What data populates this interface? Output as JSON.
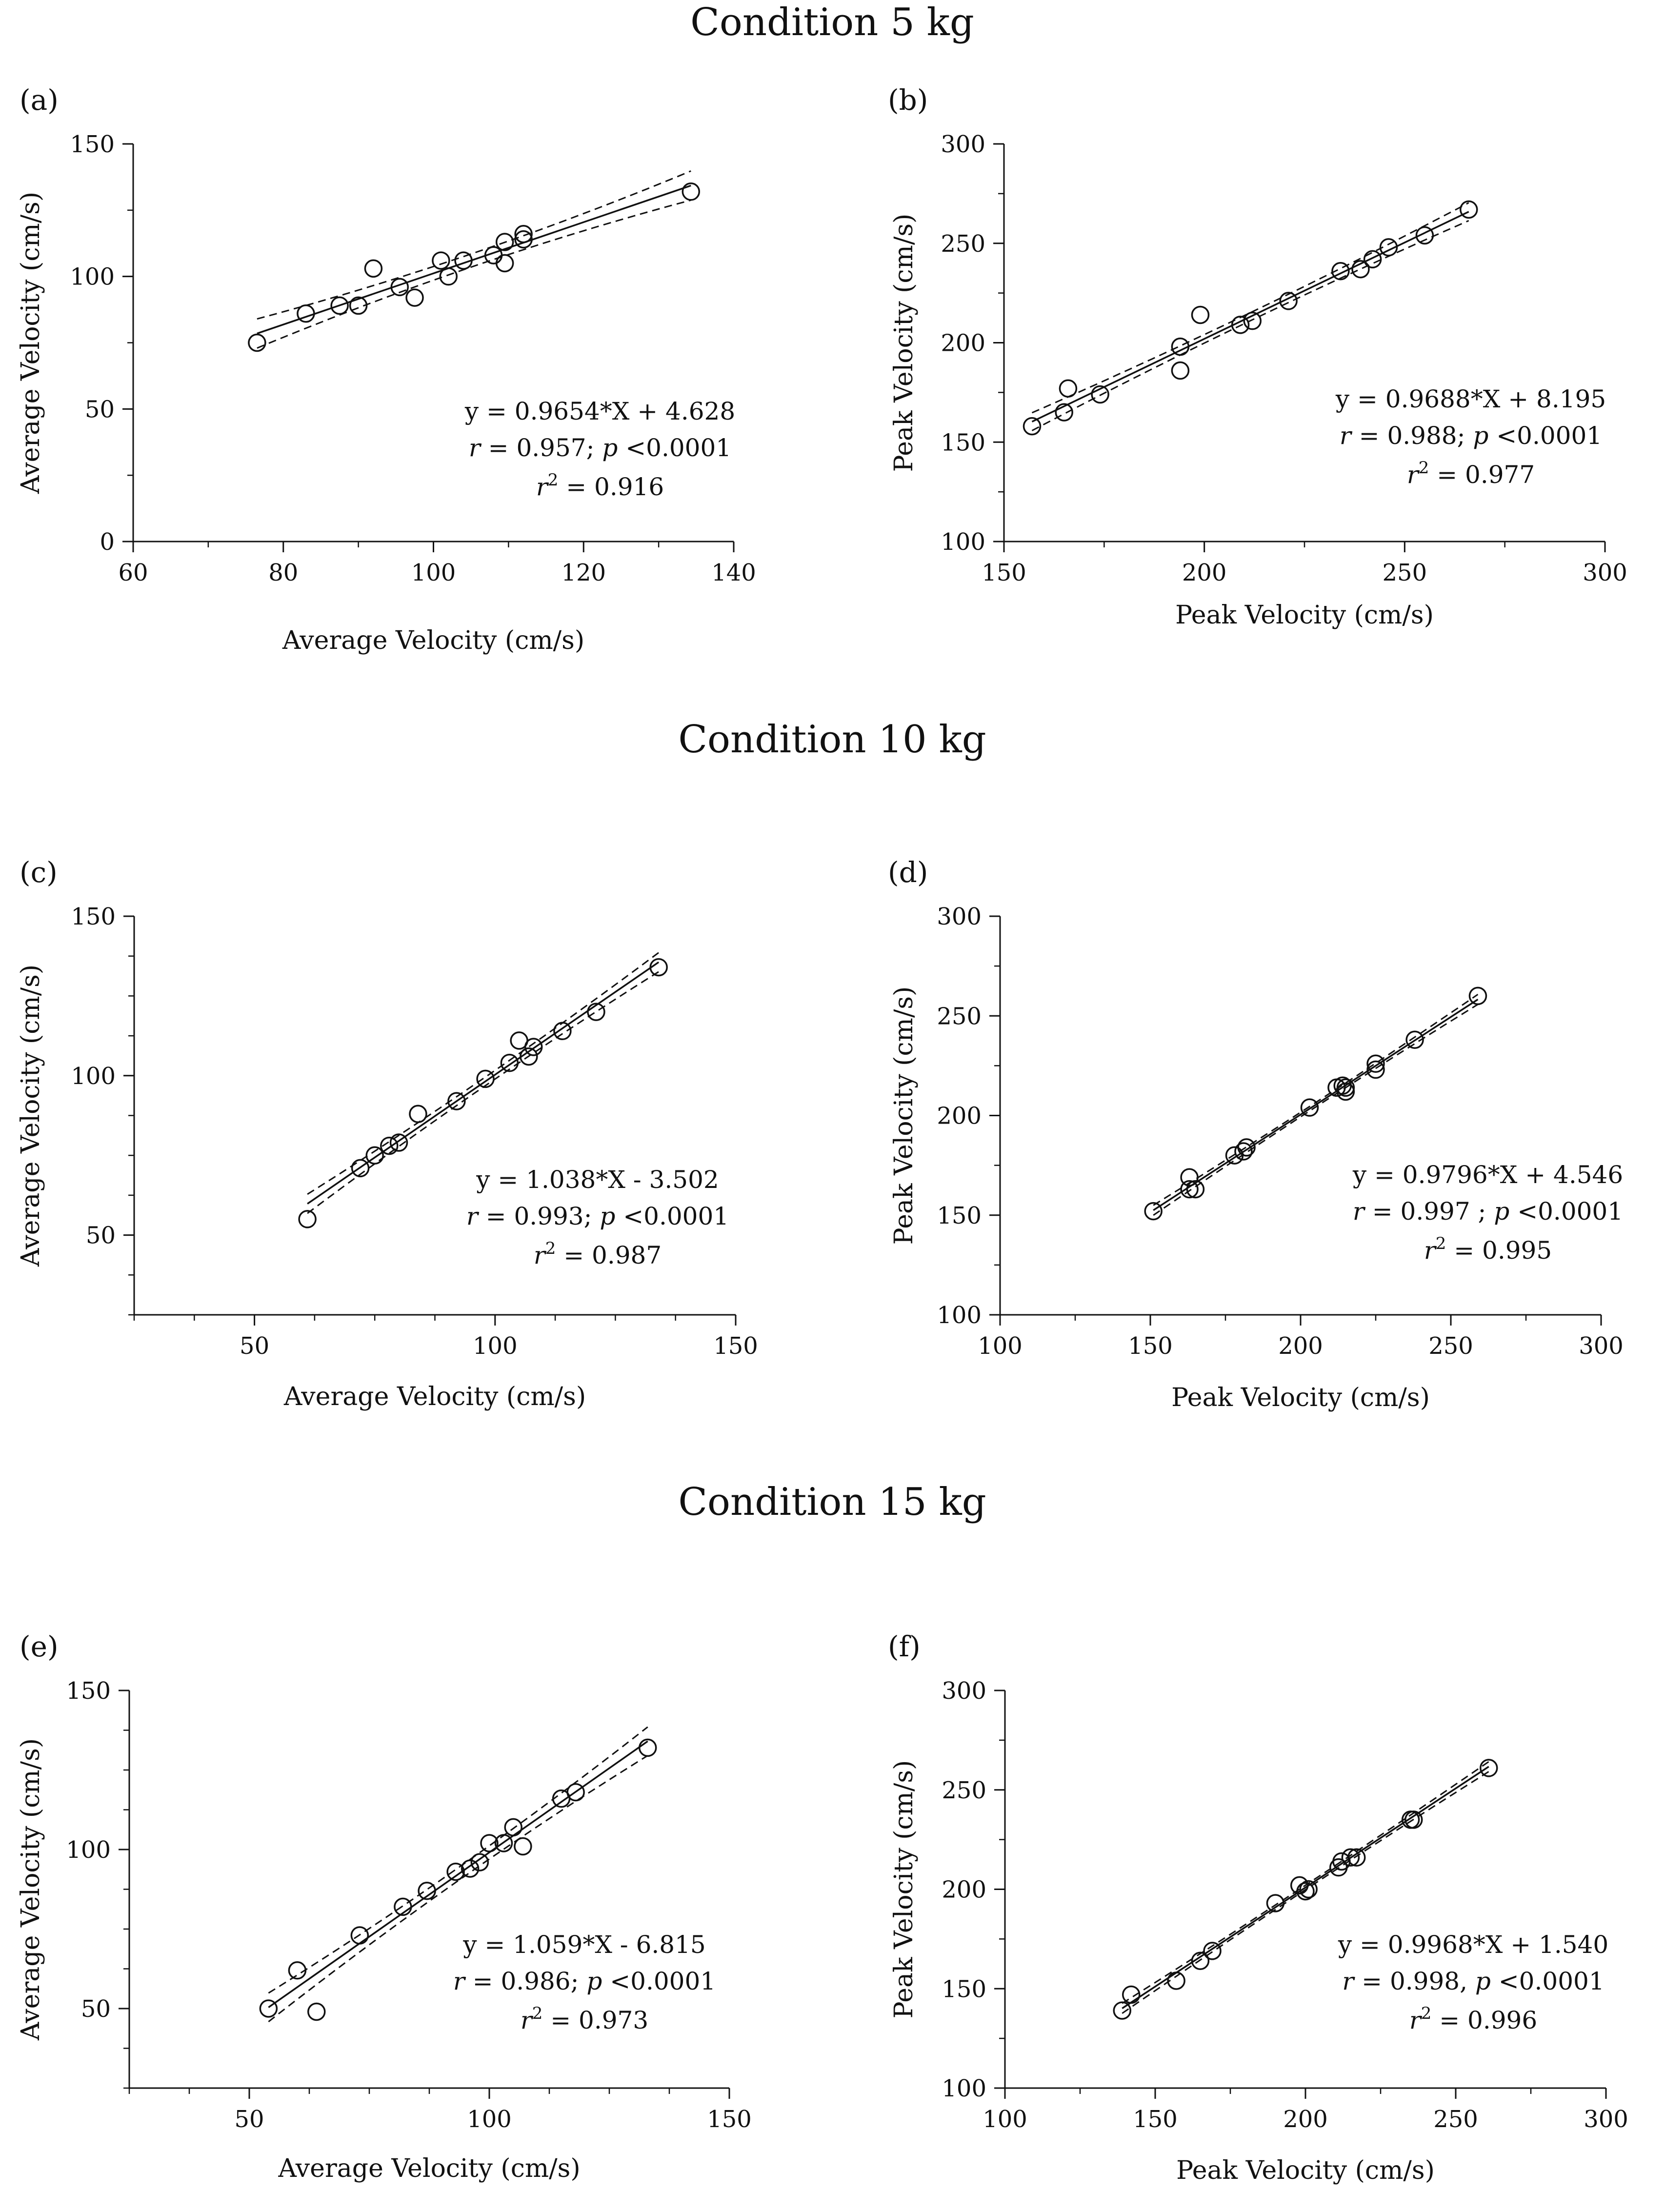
{
  "figure": {
    "condition_titles": [
      "Condition 5 kg",
      "Condition 10 kg",
      "Condition 15 kg"
    ]
  },
  "chart_data": [
    {
      "id": "a",
      "type": "scatter",
      "panel_label": "(a)",
      "condition": "Condition 5 kg",
      "xlabel": "Average Velocity (cm/s)",
      "ylabel": "Average Velocity (cm/s)",
      "xlim": [
        60,
        140
      ],
      "ylim": [
        0,
        150
      ],
      "xticks": [
        60,
        80,
        100,
        120,
        140
      ],
      "yticks": [
        0,
        50,
        100,
        150
      ],
      "x_minor": 10,
      "y_minor": 25,
      "fit": {
        "slope": 0.9654,
        "intercept": 4.628,
        "x_range": [
          76.5,
          134.3
        ],
        "ci_width": 5.5
      },
      "equation": {
        "line1": "y =  0.9654*X + 4.628",
        "r_sym": "r",
        "r_rest": " = 0.957; ",
        "p_sym": "p",
        "p_rest": " <0.0001",
        "r2_base": "r",
        "r2_sup": "2",
        "r2_rest": " = 0.916"
      },
      "points": {
        "x": [
          76.5,
          83,
          87.5,
          90,
          92,
          95.5,
          97.5,
          101,
          102,
          104,
          108,
          109.5,
          109.5,
          112,
          112,
          134.3
        ],
        "y": [
          75,
          86,
          89,
          89,
          103,
          96,
          92,
          106,
          100,
          106,
          108,
          105,
          113,
          116,
          114,
          132
        ]
      }
    },
    {
      "id": "b",
      "type": "scatter",
      "panel_label": "(b)",
      "condition": "Condition 5 kg",
      "xlabel": "Peak Velocity (cm/s)",
      "ylabel": "Peak Velocity (cm/s)",
      "xlim": [
        150,
        300
      ],
      "ylim": [
        100,
        300
      ],
      "xticks": [
        150,
        200,
        250,
        300
      ],
      "yticks": [
        100,
        150,
        200,
        250,
        300
      ],
      "x_minor": 25,
      "y_minor": 25,
      "fit": {
        "slope": 0.9688,
        "intercept": 8.195,
        "x_range": [
          157,
          266
        ],
        "ci_width": 4.5
      },
      "equation": {
        "line1": "y = 0.9688*X + 8.195",
        "r_sym": "r",
        "r_rest": " = 0.988; ",
        "p_sym": "p",
        "p_rest": " <0.0001",
        "r2_base": "r",
        "r2_sup": "2",
        "r2_rest": " = 0.977"
      },
      "points": {
        "x": [
          157,
          165,
          166,
          174,
          194,
          194,
          199,
          209,
          212,
          221,
          234,
          239,
          242,
          246,
          255,
          266
        ],
        "y": [
          158,
          165,
          177,
          174,
          186,
          198,
          214,
          209,
          211,
          221,
          236,
          237,
          242,
          248,
          254,
          267
        ]
      }
    },
    {
      "id": "c",
      "type": "scatter",
      "panel_label": "(c)",
      "condition": "Condition 10 kg",
      "xlabel": "Average Velocity (cm/s)",
      "ylabel": "Average Velocity (cm/s)",
      "xlim": [
        25,
        150
      ],
      "ylim": [
        25,
        150
      ],
      "xticks": [
        50,
        100,
        150
      ],
      "yticks": [
        50,
        100,
        150
      ],
      "x_minor": 12.5,
      "y_minor": 12.5,
      "fit": {
        "slope": 1.038,
        "intercept": -3.502,
        "x_range": [
          61,
          134
        ],
        "ci_width": 3.0
      },
      "equation": {
        "line1": "y = 1.038*X - 3.502",
        "r_sym": "r",
        "r_rest": " = 0.993; ",
        "p_sym": "p",
        "p_rest": " <0.0001",
        "r2_base": "r",
        "r2_sup": "2",
        "r2_rest": " = 0.987"
      },
      "points": {
        "x": [
          61,
          72,
          75,
          78,
          80,
          84,
          92,
          98,
          103,
          105,
          107,
          108,
          114,
          121,
          134
        ],
        "y": [
          55,
          71,
          75,
          78,
          79,
          88,
          92,
          99,
          104,
          111,
          106,
          109,
          114,
          120,
          134
        ]
      }
    },
    {
      "id": "d",
      "type": "scatter",
      "panel_label": "(d)",
      "condition": "Condition 10 kg",
      "xlabel": "Peak Velocity (cm/s)",
      "ylabel": "Peak Velocity (cm/s)",
      "xlim": [
        100,
        300
      ],
      "ylim": [
        100,
        300
      ],
      "xticks": [
        100,
        150,
        200,
        250,
        300
      ],
      "yticks": [
        100,
        150,
        200,
        250,
        300
      ],
      "x_minor": 25,
      "y_minor": 25,
      "fit": {
        "slope": 0.9796,
        "intercept": 4.546,
        "x_range": [
          151,
          259
        ],
        "ci_width": 2.5
      },
      "equation": {
        "line1": "y = 0.9796*X + 4.546",
        "r_sym": "r",
        "r_rest": " = 0.997 ; ",
        "p_sym": "p",
        "p_rest": " <0.0001",
        "r2_base": "r",
        "r2_sup": "2",
        "r2_rest": " = 0.995"
      },
      "points": {
        "x": [
          151,
          163,
          163,
          165,
          178,
          181,
          182,
          203,
          212,
          214,
          215,
          215,
          225,
          225,
          238,
          259
        ],
        "y": [
          152,
          163,
          169,
          163,
          180,
          182,
          184,
          204,
          214,
          215,
          212,
          214,
          223,
          226,
          238,
          260
        ]
      }
    },
    {
      "id": "e",
      "type": "scatter",
      "panel_label": "(e)",
      "condition": "Condition 15 kg",
      "xlabel": "Average Velocity (cm/s)",
      "ylabel": "Average Velocity (cm/s)",
      "xlim": [
        25,
        150
      ],
      "ylim": [
        25,
        150
      ],
      "xticks": [
        50,
        100,
        150
      ],
      "yticks": [
        50,
        100,
        150
      ],
      "x_minor": 12.5,
      "y_minor": 12.5,
      "fit": {
        "slope": 1.059,
        "intercept": -6.815,
        "x_range": [
          54,
          133
        ],
        "ci_width": 4.5
      },
      "equation": {
        "line1": "y = 1.059*X - 6.815",
        "r_sym": "r",
        "r_rest": " = 0.986; ",
        "p_sym": "p",
        "p_rest": " <0.0001",
        "r2_base": "r",
        "r2_sup": "2",
        "r2_rest": " = 0.973"
      },
      "points": {
        "x": [
          54,
          60,
          64,
          73,
          82,
          87,
          93,
          96,
          98,
          100,
          103,
          105,
          107,
          115,
          118,
          133
        ],
        "y": [
          50,
          62,
          49,
          73,
          82,
          87,
          93,
          94,
          96,
          102,
          102,
          107,
          101,
          116,
          118,
          132
        ]
      }
    },
    {
      "id": "f",
      "type": "scatter",
      "panel_label": "(f)",
      "condition": "Condition 15 kg",
      "xlabel": "Peak Velocity (cm/s)",
      "ylabel": "Peak Velocity (cm/s)",
      "xlim": [
        100,
        300
      ],
      "ylim": [
        100,
        300
      ],
      "xticks": [
        100,
        150,
        200,
        250,
        300
      ],
      "yticks": [
        100,
        150,
        200,
        250,
        300
      ],
      "x_minor": 25,
      "y_minor": 25,
      "fit": {
        "slope": 0.9968,
        "intercept": 1.54,
        "x_range": [
          139,
          261
        ],
        "ci_width": 2.5
      },
      "equation": {
        "line1": "y = 0.9968*X + 1.540",
        "r_sym": "r",
        "r_rest": " = 0.998, ",
        "p_sym": "p",
        "p_rest": " <0.0001",
        "r2_base": "r",
        "r2_sup": "2",
        "r2_rest": " = 0.996"
      },
      "points": {
        "x": [
          139,
          142,
          157,
          165,
          169,
          190,
          198,
          200,
          201,
          211,
          212,
          215,
          217,
          235,
          236,
          261
        ],
        "y": [
          139,
          147,
          154,
          164,
          169,
          193,
          202,
          199,
          200,
          211,
          214,
          216,
          216,
          235,
          235,
          261
        ]
      }
    }
  ]
}
